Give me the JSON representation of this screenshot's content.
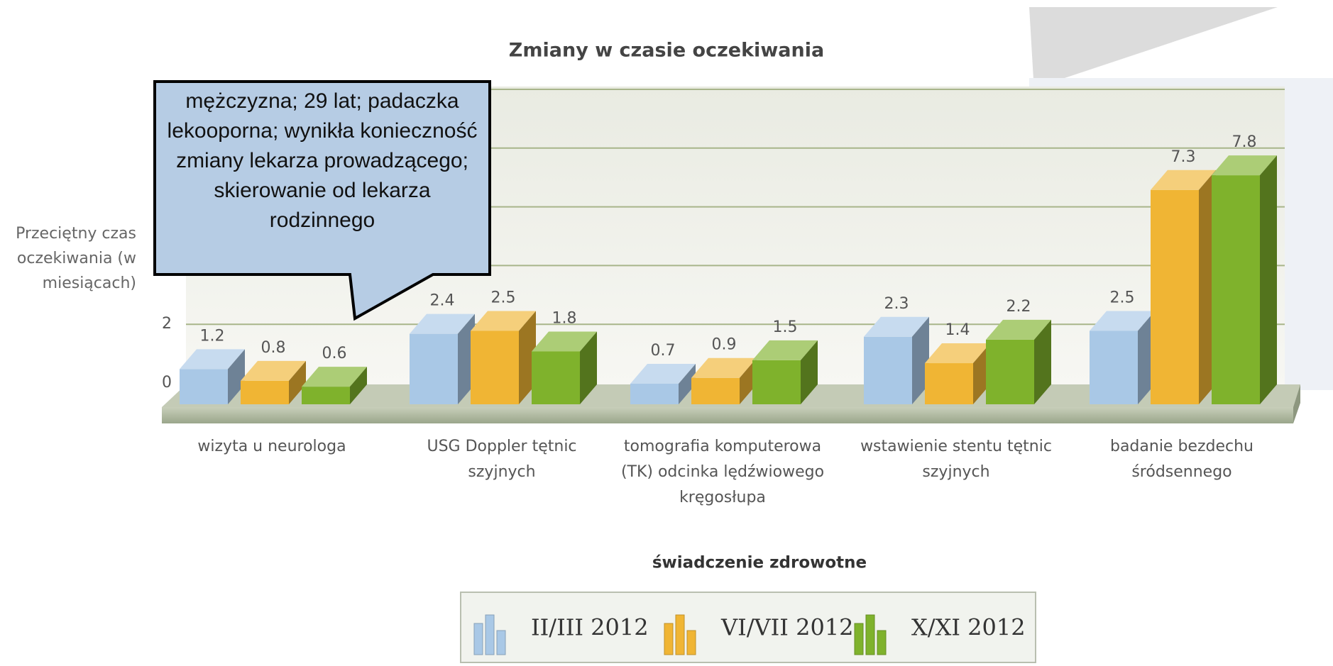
{
  "chart_data": {
    "type": "bar3d",
    "title": "Zmiany w czasie oczekiwania",
    "ylabel": "Przeciętny czas oczekiwania (w miesiącach)",
    "xlabel": "świadczenie zdrowotne",
    "categories": [
      "wizyta u neurologa",
      "USG Doppler tętnic szyjnych",
      "tomografia komputerowa (TK) odcinka lędźwiowego kręgosłupa",
      "wstawienie stentu tętnic szyjnych",
      "badanie bezdechu śródsennego"
    ],
    "series": [
      {
        "name": "II/III 2012",
        "color": "#a9c8e6",
        "values": [
          1.2,
          2.4,
          0.7,
          2.3,
          2.5
        ]
      },
      {
        "name": "VI/VII 2012",
        "color": "#f0b534",
        "values": [
          0.8,
          2.5,
          0.9,
          1.4,
          7.3
        ]
      },
      {
        "name": "X/XI 2012",
        "color": "#7fb22c",
        "values": [
          0.6,
          1.8,
          1.5,
          2.2,
          7.8
        ]
      }
    ],
    "ylim": [
      0,
      10
    ],
    "yticks": [
      0,
      2,
      4,
      6,
      8,
      10
    ],
    "grid": true,
    "annotation": "mężczyzna; 29 lat; padaczka lekooporna; wynikła konieczność zmiany lekarza prowadzącego; skierowanie od lekarza rodzinnego"
  }
}
